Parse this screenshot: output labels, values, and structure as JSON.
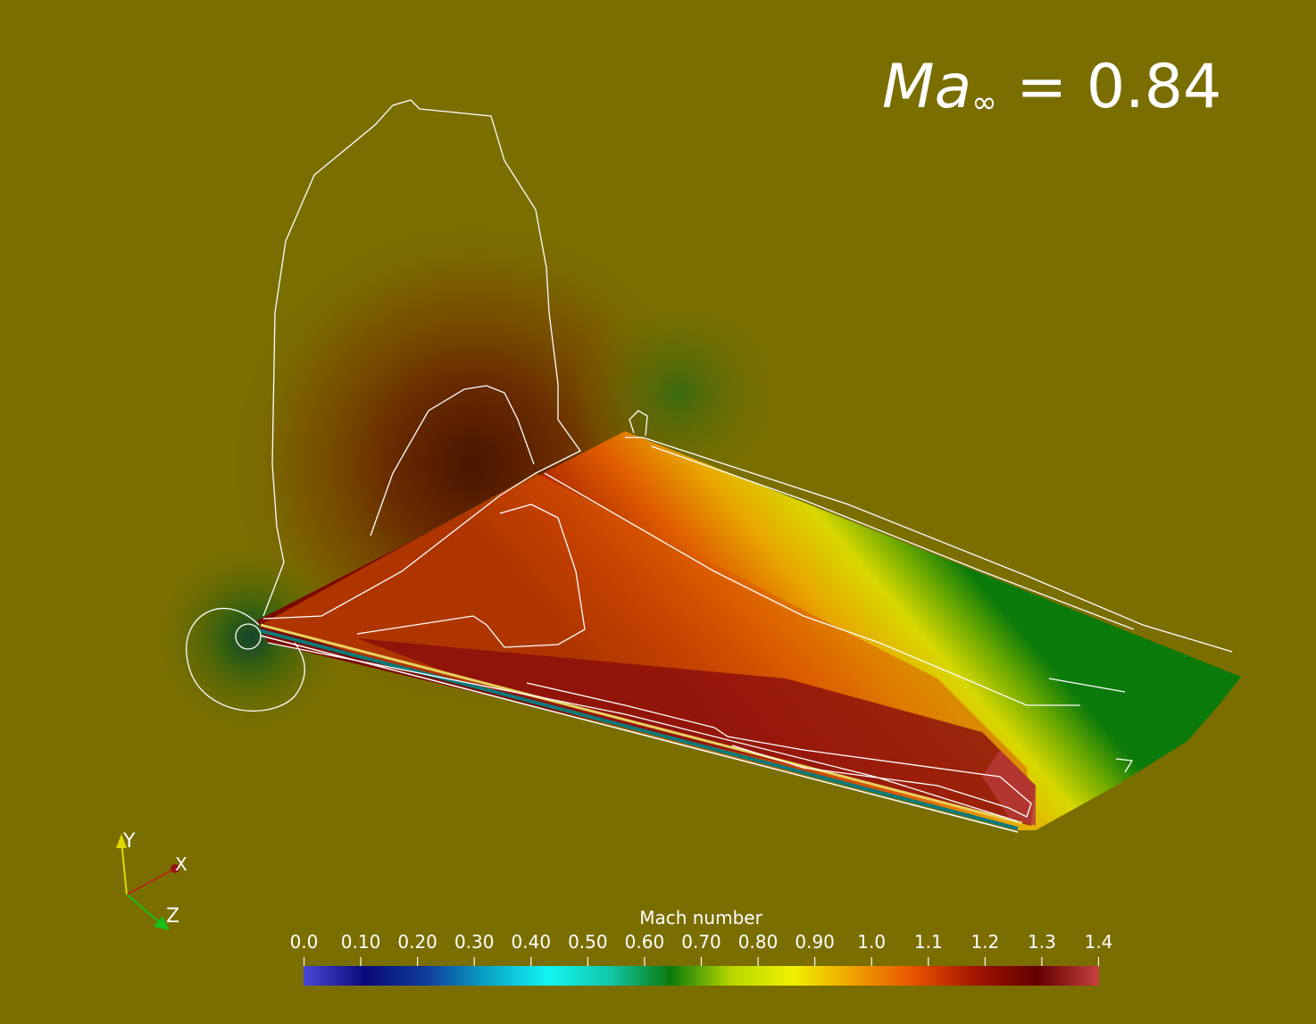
{
  "title": {
    "symbol": "Ma",
    "subscript": "∞",
    "equals": "=",
    "value": "0.84"
  },
  "colorbar": {
    "title": "Mach number",
    "ticks": [
      "0.0",
      "0.10",
      "0.20",
      "0.30",
      "0.40",
      "0.50",
      "0.60",
      "0.70",
      "0.80",
      "0.90",
      "1.0",
      "1.1",
      "1.2",
      "1.3",
      "1.4"
    ],
    "range": [
      0.0,
      1.4
    ],
    "stops": [
      "#4848d8",
      "#0a0a7a",
      "#0f3c9a",
      "#0aa4c8",
      "#12f4f4",
      "#10c8a8",
      "#0a7a0a",
      "#b8d800",
      "#f0f000",
      "#f0a000",
      "#e85000",
      "#a01400",
      "#620000",
      "#c84040"
    ]
  },
  "axes": {
    "x": "X",
    "y": "Y",
    "z": "Z",
    "colors": {
      "x": "#c01818",
      "y": "#e0d800",
      "z": "#18c018"
    }
  }
}
